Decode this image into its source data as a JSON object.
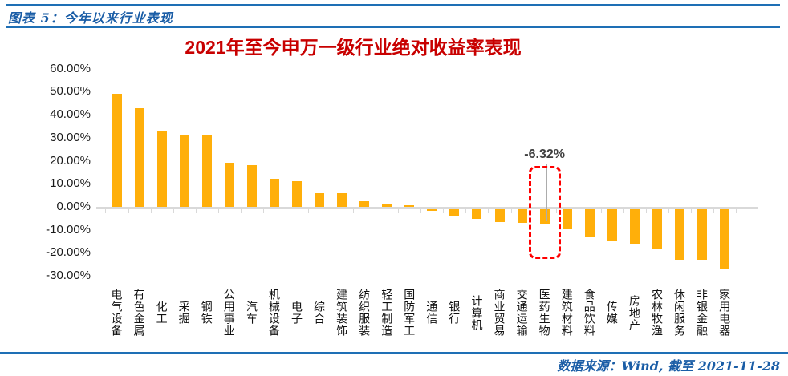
{
  "page": {
    "caption": "图表 5：今年以来行业表现",
    "source_note": "数据来源：Wind, 截至 2021-11-28"
  },
  "chart_data": {
    "type": "bar",
    "title": "2021年至今申万一级行业绝对收益率表现",
    "xlabel": "",
    "ylabel": "",
    "unit": "%",
    "ylim": [
      -30,
      60
    ],
    "ytick_step": 10,
    "ytick_labels": [
      "60.00%",
      "50.00%",
      "40.00%",
      "30.00%",
      "20.00%",
      "10.00%",
      "0.00%",
      "-10.00%",
      "-20.00%",
      "-30.00%"
    ],
    "grid": false,
    "legend": null,
    "bar_color": "#FFAF0A",
    "categories": [
      "电气设备",
      "有色金属",
      "化工",
      "采掘",
      "钢铁",
      "公用事业",
      "汽车",
      "机械设备",
      "电子",
      "综合",
      "建筑装饰",
      "纺织服装",
      "轻工制造",
      "国防军工",
      "通信",
      "银行",
      "计算机",
      "商业贸易",
      "交通运输",
      "医药生物",
      "建筑材料",
      "食品饮料",
      "传媒",
      "房地产",
      "农林牧渔",
      "休闲服务",
      "非银金融",
      "家用电器"
    ],
    "values": [
      49.0,
      42.8,
      33.2,
      31.5,
      31.0,
      19.3,
      18.1,
      12.3,
      11.3,
      5.9,
      5.8,
      2.5,
      1.0,
      0.8,
      -0.8,
      -2.8,
      -4.2,
      -5.6,
      -5.9,
      -6.32,
      -8.8,
      -11.8,
      -13.5,
      -15.0,
      -17.5,
      -21.8,
      -22.0,
      -25.8
    ],
    "annotation": {
      "text": "-6.32%",
      "category": "医药生物",
      "index": 19
    },
    "colors": {
      "title": "#C80000",
      "axis": "#D9D9D9",
      "labels": "#1A1A1A",
      "annotation_box": "#FF0000",
      "annotation_text": "#3F3F3F",
      "leader": "#ACACAC"
    }
  },
  "theme": {
    "accent_blue_text": "#1A5DA6",
    "accent_blue_line": "#1E6FB5"
  }
}
